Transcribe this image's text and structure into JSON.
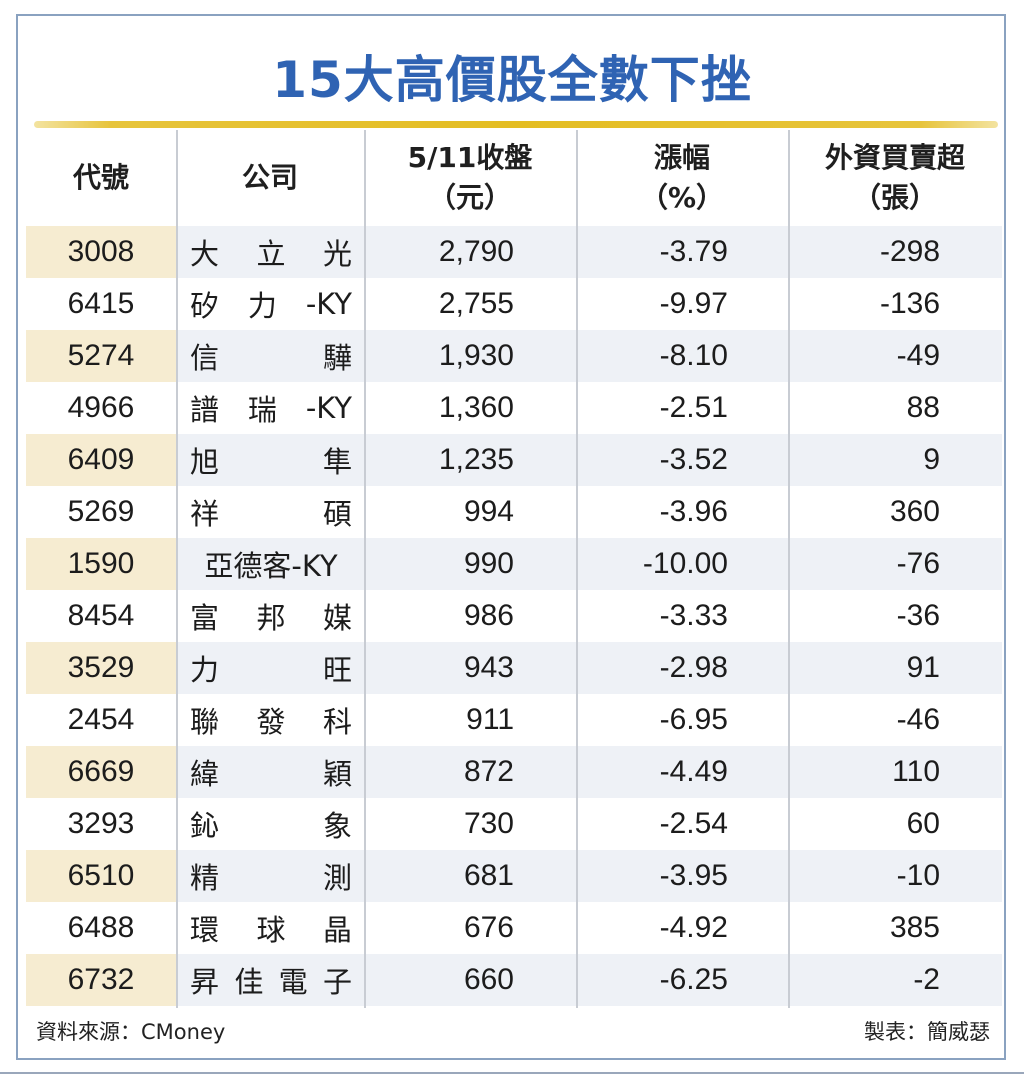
{
  "title": "15大高價股全數下挫",
  "headers": {
    "code": "代號",
    "company": "公司",
    "close_line1": "5/11收盤",
    "close_line2": "（元）",
    "change_line1": "漲幅",
    "change_line2": "（%）",
    "foreign_line1": "外資買賣超",
    "foreign_line2": "（張）"
  },
  "rows": [
    {
      "code": "3008",
      "name": [
        "大",
        "立",
        "光"
      ],
      "close": "2,790",
      "change": "-3.79",
      "foreign": "-298"
    },
    {
      "code": "6415",
      "name": [
        "矽",
        "力",
        "-KY"
      ],
      "close": "2,755",
      "change": "-9.97",
      "foreign": "-136"
    },
    {
      "code": "5274",
      "name": [
        "信",
        "驊"
      ],
      "close": "1,930",
      "change": "-8.10",
      "foreign": "-49"
    },
    {
      "code": "4966",
      "name": [
        "譜",
        "瑞",
        "-KY"
      ],
      "close": "1,360",
      "change": "-2.51",
      "foreign": "88"
    },
    {
      "code": "6409",
      "name": [
        "旭",
        "隼"
      ],
      "close": "1,235",
      "change": "-3.52",
      "foreign": "9"
    },
    {
      "code": "5269",
      "name": [
        "祥",
        "碩"
      ],
      "close": "994",
      "change": "-3.96",
      "foreign": "360"
    },
    {
      "code": "1590",
      "name": [
        "亞德客-KY"
      ],
      "close": "990",
      "change": "-10.00",
      "foreign": "-76"
    },
    {
      "code": "8454",
      "name": [
        "富",
        "邦",
        "媒"
      ],
      "close": "986",
      "change": "-3.33",
      "foreign": "-36"
    },
    {
      "code": "3529",
      "name": [
        "力",
        "旺"
      ],
      "close": "943",
      "change": "-2.98",
      "foreign": "91"
    },
    {
      "code": "2454",
      "name": [
        "聯",
        "發",
        "科"
      ],
      "close": "911",
      "change": "-6.95",
      "foreign": "-46"
    },
    {
      "code": "6669",
      "name": [
        "緯",
        "穎"
      ],
      "close": "872",
      "change": "-4.49",
      "foreign": "110"
    },
    {
      "code": "3293",
      "name": [
        "鈊",
        "象"
      ],
      "close": "730",
      "change": "-2.54",
      "foreign": "60"
    },
    {
      "code": "6510",
      "name": [
        "精",
        "測"
      ],
      "close": "681",
      "change": "-3.95",
      "foreign": "-10"
    },
    {
      "code": "6488",
      "name": [
        "環",
        "球",
        "晶"
      ],
      "close": "676",
      "change": "-4.92",
      "foreign": "385"
    },
    {
      "code": "6732",
      "name": [
        "昇",
        "佳",
        "電",
        "子"
      ],
      "close": "660",
      "change": "-6.25",
      "foreign": "-2"
    }
  ],
  "source": "資料來源：CMoney",
  "credit": "製表：簡威瑟",
  "colors": {
    "title": "#2f63b3",
    "gold_rule": "#e4bd22",
    "code_shade": "#f6ecd1",
    "row_shade": "#eef1f6",
    "frame": "#8aa2c0"
  }
}
